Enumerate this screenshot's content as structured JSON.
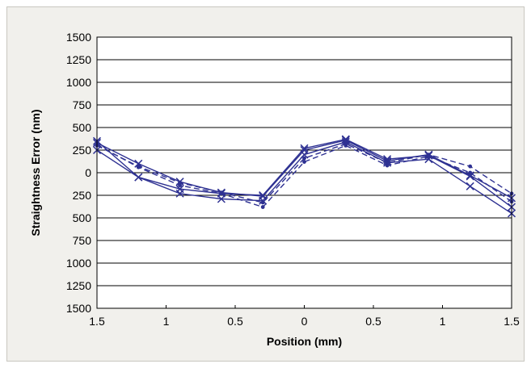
{
  "chart_data": {
    "type": "line",
    "xlabel": "Position (mm)",
    "ylabel": "Straightness Error (nm)",
    "x": [
      -1.5,
      -1.2,
      -0.9,
      -0.6,
      -0.3,
      0,
      0.3,
      0.6,
      0.9,
      1.2,
      1.5
    ],
    "xlim": [
      -1.5,
      1.5
    ],
    "ylim": [
      -1500,
      1500
    ],
    "x_ticks": [
      -1.5,
      -1,
      -0.5,
      0,
      0.5,
      1,
      1.5
    ],
    "x_tick_labels": [
      "1.5",
      "1",
      "0.5",
      "0",
      "0.5",
      "1",
      "1.5"
    ],
    "y_ticks": [
      1500,
      1250,
      1000,
      750,
      500,
      250,
      0,
      -250,
      -500,
      -750,
      -1000,
      -1250,
      -1500
    ],
    "y_tick_labels": [
      "1500",
      "1250",
      "1000",
      "750",
      "500",
      "250",
      "0",
      "250",
      "500",
      "750",
      "1000",
      "1250",
      "1500"
    ],
    "grid": "horizontal",
    "line_color": "#2e3192",
    "series": [
      {
        "marker": "cross",
        "dash": "solid",
        "values": [
          330,
          100,
          -100,
          -220,
          -260,
          250,
          360,
          130,
          200,
          -30,
          -280
        ]
      },
      {
        "marker": "cross",
        "dash": "solid",
        "values": [
          250,
          -50,
          -230,
          -290,
          -310,
          200,
          340,
          110,
          150,
          -150,
          -450
        ]
      },
      {
        "marker": "cross",
        "dash": "solid",
        "values": [
          350,
          -50,
          -180,
          -230,
          -250,
          270,
          370,
          150,
          190,
          -40,
          -380
        ]
      },
      {
        "marker": "dot",
        "dash": "dashed",
        "values": [
          300,
          70,
          -110,
          -220,
          -330,
          160,
          320,
          110,
          200,
          70,
          -230
        ]
      },
      {
        "marker": "dot",
        "dash": "dashed",
        "values": [
          310,
          60,
          -140,
          -230,
          -380,
          120,
          300,
          80,
          180,
          0,
          -320
        ]
      }
    ]
  }
}
